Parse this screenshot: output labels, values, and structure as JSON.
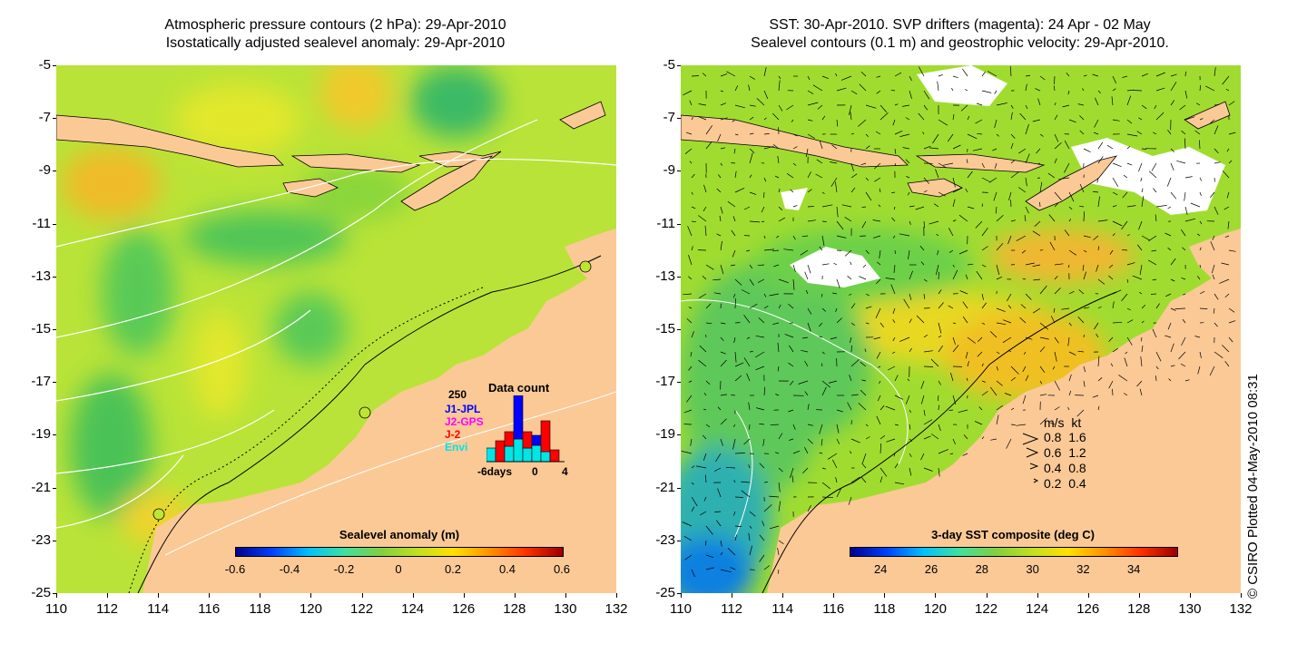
{
  "left_panel": {
    "title_line1": "Atmospheric pressure contours (2 hPa): 29-Apr-2010",
    "title_line2": "Isostatically adjusted sealevel anomaly: 29-Apr-2010",
    "colorbar": {
      "title": "Sealevel anomaly (m)",
      "ticks": [
        "-0.6",
        "-0.4",
        "-0.2",
        "0",
        "0.2",
        "0.4",
        "0.6"
      ]
    },
    "inset": {
      "title": "Data count",
      "ymax_label": "250",
      "satellites": [
        {
          "name": "J1-JPL",
          "color": "#0000ff"
        },
        {
          "name": "J2-GPS",
          "color": "#ff00ff"
        },
        {
          "name": "J-2",
          "color": "#ff0000"
        },
        {
          "name": "Envi",
          "color": "#00e5e5"
        }
      ],
      "x_labels": [
        "-6days",
        "0",
        "4"
      ]
    }
  },
  "right_panel": {
    "title_line1": "SST: 30-Apr-2010. SVP drifters (magenta): 24 Apr - 02 May",
    "title_line2": "Sealevel contours (0.1 m) and geostrophic velocity: 29-Apr-2010.",
    "colorbar": {
      "title": "3-day SST composite (deg C)",
      "ticks": [
        "24",
        "26",
        "28",
        "30",
        "32",
        "34"
      ]
    },
    "velocity_legend": {
      "header": "m/s  kt",
      "rows": [
        "0.8  1.6",
        "0.6  1.2",
        "0.4  0.8",
        "0.2  0.4"
      ]
    }
  },
  "axes": {
    "y_labels": [
      "-5",
      "-7",
      "-9",
      "-11",
      "-13",
      "-15",
      "-17",
      "-19",
      "-21",
      "-23",
      "-25"
    ],
    "x_labels": [
      "110",
      "112",
      "114",
      "116",
      "118",
      "120",
      "122",
      "124",
      "126",
      "128",
      "130",
      "132"
    ]
  },
  "credit": "© CSIRO Plotted 04-May-2010 08:31",
  "colors": {
    "land": "#fbc996",
    "sla_green": "#bfe533",
    "sst_green": "#8ed633"
  }
}
